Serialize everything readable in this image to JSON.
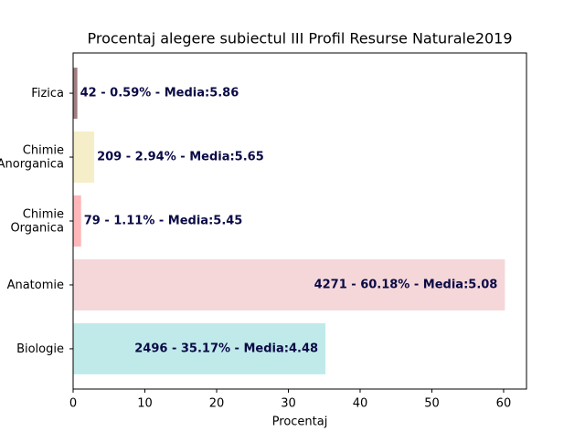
{
  "chart_data": {
    "type": "barh",
    "title": "Procentaj alegere subiectul III Profil Resurse Naturale2019",
    "x_label": "Procentaj",
    "categories": [
      "Biologie",
      "Anatomie",
      "Chimie\nOrganica",
      "Chimie\nAnorganica",
      "Fizica"
    ],
    "values": [
      35.17,
      60.18,
      1.11,
      2.94,
      0.59
    ],
    "value_labels": [
      "2496 - 35.17% - Media:4.48",
      "4271 - 60.18% - Media:5.08",
      "79 - 1.11% - Media:5.45",
      "209 - 2.94% - Media:5.65",
      "42 - 0.59% - Media:5.86"
    ],
    "colors": [
      "#c0eaea",
      "#f5d7d9",
      "#ffb6b9",
      "#f5eec8",
      "#a17d80"
    ],
    "xlim": [
      0,
      63.19
    ],
    "xticks": [
      0,
      10,
      20,
      30,
      40,
      50,
      60
    ],
    "grid": false
  }
}
